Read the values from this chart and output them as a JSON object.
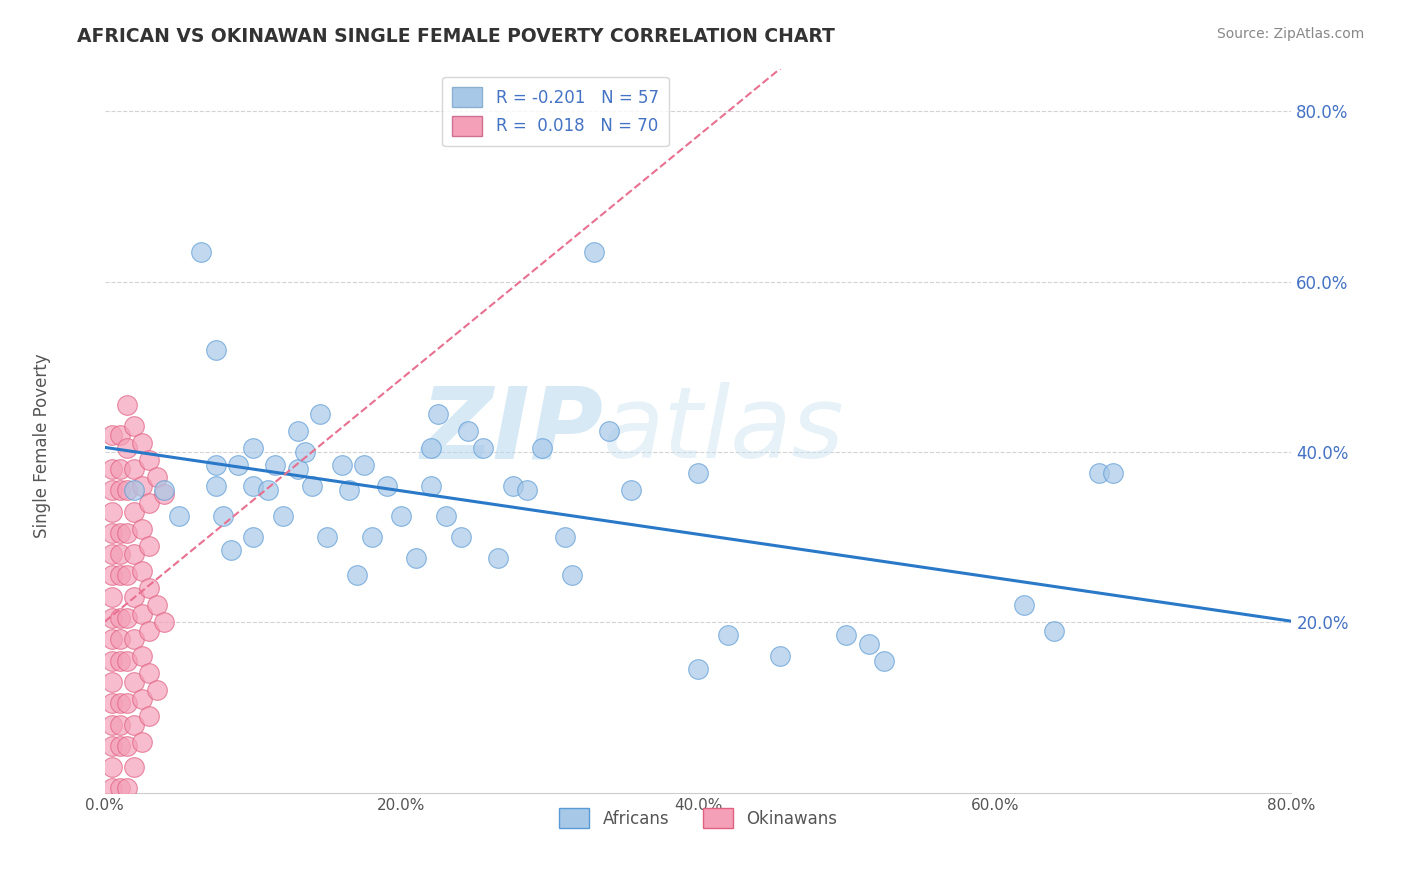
{
  "title": "AFRICAN VS OKINAWAN SINGLE FEMALE POVERTY CORRELATION CHART",
  "source": "Source: ZipAtlas.com",
  "ylabel": "Single Female Poverty",
  "xlim": [
    0.0,
    0.8
  ],
  "ylim": [
    0.0,
    0.85
  ],
  "xtick_labels": [
    "0.0%",
    "",
    "20.0%",
    "",
    "40.0%",
    "",
    "60.0%",
    "",
    "80.0%"
  ],
  "xtick_vals": [
    0.0,
    0.1,
    0.2,
    0.3,
    0.4,
    0.5,
    0.6,
    0.7,
    0.8
  ],
  "ytick_labels": [
    "20.0%",
    "40.0%",
    "60.0%",
    "80.0%"
  ],
  "ytick_vals": [
    0.2,
    0.4,
    0.6,
    0.8
  ],
  "grid_color": "#c8c8c8",
  "background_color": "#ffffff",
  "africans_color": "#a8c8e8",
  "africans_edge_color": "#5b9bd5",
  "okinawans_color": "#f4a0b8",
  "okinawans_edge_color": "#e06080",
  "africans_line_color": "#2979c8",
  "okinawans_line_color": "#e87090",
  "legend_blue_color": "#a8c8e8",
  "legend_pink_color": "#f4a0b8",
  "legend_text_color": "#4472c4",
  "ytick_color": "#4472c4",
  "africans_scatter": [
    [
      0.02,
      0.355
    ],
    [
      0.04,
      0.355
    ],
    [
      0.05,
      0.325
    ],
    [
      0.065,
      0.635
    ],
    [
      0.075,
      0.52
    ],
    [
      0.075,
      0.385
    ],
    [
      0.075,
      0.36
    ],
    [
      0.08,
      0.325
    ],
    [
      0.085,
      0.285
    ],
    [
      0.09,
      0.385
    ],
    [
      0.1,
      0.405
    ],
    [
      0.1,
      0.36
    ],
    [
      0.1,
      0.3
    ],
    [
      0.11,
      0.355
    ],
    [
      0.115,
      0.385
    ],
    [
      0.12,
      0.325
    ],
    [
      0.13,
      0.425
    ],
    [
      0.13,
      0.38
    ],
    [
      0.135,
      0.4
    ],
    [
      0.14,
      0.36
    ],
    [
      0.145,
      0.445
    ],
    [
      0.15,
      0.3
    ],
    [
      0.16,
      0.385
    ],
    [
      0.165,
      0.355
    ],
    [
      0.17,
      0.255
    ],
    [
      0.175,
      0.385
    ],
    [
      0.18,
      0.3
    ],
    [
      0.19,
      0.36
    ],
    [
      0.2,
      0.325
    ],
    [
      0.21,
      0.275
    ],
    [
      0.22,
      0.405
    ],
    [
      0.22,
      0.36
    ],
    [
      0.225,
      0.445
    ],
    [
      0.23,
      0.325
    ],
    [
      0.24,
      0.3
    ],
    [
      0.245,
      0.425
    ],
    [
      0.255,
      0.405
    ],
    [
      0.265,
      0.275
    ],
    [
      0.275,
      0.36
    ],
    [
      0.285,
      0.355
    ],
    [
      0.295,
      0.405
    ],
    [
      0.31,
      0.3
    ],
    [
      0.315,
      0.255
    ],
    [
      0.33,
      0.635
    ],
    [
      0.34,
      0.425
    ],
    [
      0.355,
      0.355
    ],
    [
      0.4,
      0.145
    ],
    [
      0.4,
      0.375
    ],
    [
      0.42,
      0.185
    ],
    [
      0.455,
      0.16
    ],
    [
      0.5,
      0.185
    ],
    [
      0.515,
      0.175
    ],
    [
      0.525,
      0.155
    ],
    [
      0.62,
      0.22
    ],
    [
      0.64,
      0.19
    ],
    [
      0.67,
      0.375
    ],
    [
      0.68,
      0.375
    ]
  ],
  "okinawans_scatter": [
    [
      0.005,
      0.42
    ],
    [
      0.005,
      0.38
    ],
    [
      0.005,
      0.355
    ],
    [
      0.005,
      0.33
    ],
    [
      0.005,
      0.305
    ],
    [
      0.005,
      0.28
    ],
    [
      0.005,
      0.255
    ],
    [
      0.005,
      0.23
    ],
    [
      0.005,
      0.205
    ],
    [
      0.005,
      0.18
    ],
    [
      0.005,
      0.155
    ],
    [
      0.005,
      0.13
    ],
    [
      0.005,
      0.105
    ],
    [
      0.005,
      0.08
    ],
    [
      0.005,
      0.055
    ],
    [
      0.005,
      0.03
    ],
    [
      0.005,
      0.005
    ],
    [
      0.01,
      0.42
    ],
    [
      0.01,
      0.38
    ],
    [
      0.01,
      0.355
    ],
    [
      0.01,
      0.305
    ],
    [
      0.01,
      0.28
    ],
    [
      0.01,
      0.255
    ],
    [
      0.01,
      0.205
    ],
    [
      0.01,
      0.18
    ],
    [
      0.01,
      0.155
    ],
    [
      0.01,
      0.105
    ],
    [
      0.01,
      0.08
    ],
    [
      0.01,
      0.055
    ],
    [
      0.01,
      0.005
    ],
    [
      0.015,
      0.455
    ],
    [
      0.015,
      0.405
    ],
    [
      0.015,
      0.355
    ],
    [
      0.015,
      0.305
    ],
    [
      0.015,
      0.255
    ],
    [
      0.015,
      0.205
    ],
    [
      0.015,
      0.155
    ],
    [
      0.015,
      0.105
    ],
    [
      0.015,
      0.055
    ],
    [
      0.015,
      0.005
    ],
    [
      0.02,
      0.43
    ],
    [
      0.02,
      0.38
    ],
    [
      0.02,
      0.33
    ],
    [
      0.02,
      0.28
    ],
    [
      0.02,
      0.23
    ],
    [
      0.02,
      0.18
    ],
    [
      0.02,
      0.13
    ],
    [
      0.02,
      0.08
    ],
    [
      0.02,
      0.03
    ],
    [
      0.025,
      0.41
    ],
    [
      0.025,
      0.36
    ],
    [
      0.025,
      0.31
    ],
    [
      0.025,
      0.26
    ],
    [
      0.025,
      0.21
    ],
    [
      0.025,
      0.16
    ],
    [
      0.025,
      0.11
    ],
    [
      0.025,
      0.06
    ],
    [
      0.03,
      0.39
    ],
    [
      0.03,
      0.34
    ],
    [
      0.03,
      0.29
    ],
    [
      0.03,
      0.24
    ],
    [
      0.03,
      0.19
    ],
    [
      0.03,
      0.14
    ],
    [
      0.03,
      0.09
    ],
    [
      0.035,
      0.37
    ],
    [
      0.035,
      0.22
    ],
    [
      0.035,
      0.12
    ],
    [
      0.04,
      0.35
    ],
    [
      0.04,
      0.2
    ]
  ]
}
